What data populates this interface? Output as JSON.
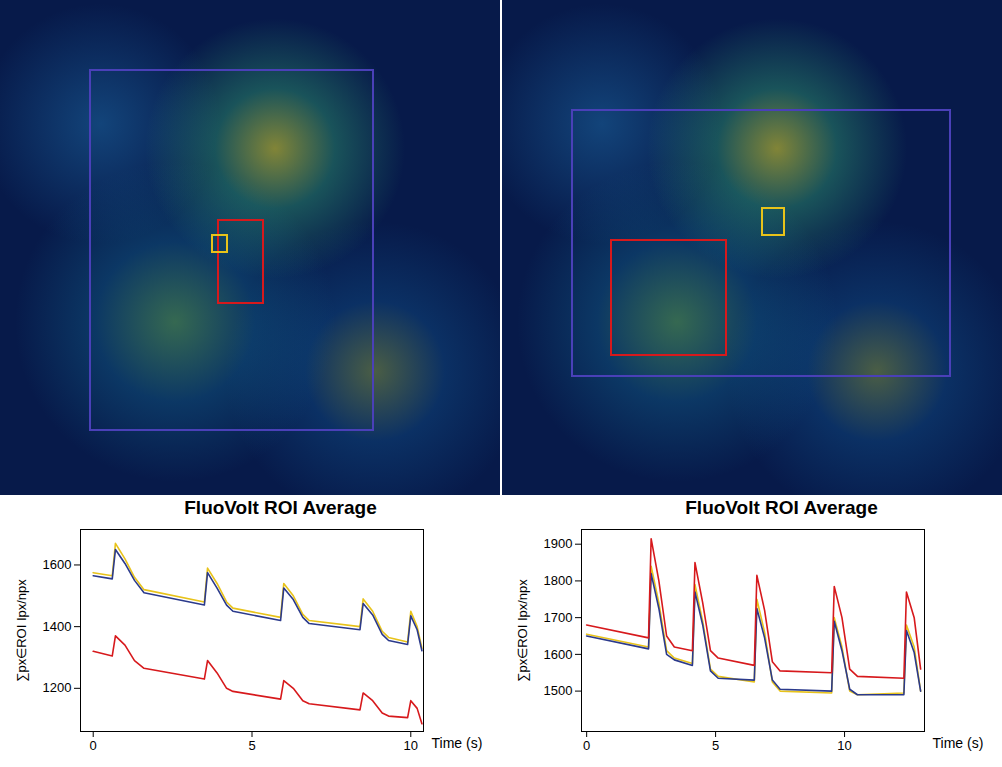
{
  "chart_data": [
    {
      "type": "line",
      "title": "FluoVolt ROI Average",
      "xlabel": "Time (s)",
      "ylabel": "∑px∈ROI Ipx/npx",
      "xlim": [
        -0.4,
        10.4
      ],
      "ylim": [
        1060,
        1715
      ],
      "xticks": [
        0,
        5,
        10
      ],
      "yticks": [
        1200,
        1400,
        1600
      ],
      "grid": false,
      "x": [
        0,
        0.6,
        0.7,
        1.0,
        1.3,
        1.6,
        3.5,
        3.6,
        3.9,
        4.2,
        4.4,
        5.9,
        6.0,
        6.3,
        6.6,
        6.8,
        8.4,
        8.5,
        8.8,
        9.1,
        9.3,
        9.9,
        10.0,
        10.2,
        10.35
      ],
      "series": [
        {
          "color": "#e8c31a",
          "values": [
            1575,
            1565,
            1670,
            1620,
            1560,
            1520,
            1480,
            1590,
            1540,
            1480,
            1460,
            1430,
            1540,
            1500,
            1440,
            1420,
            1400,
            1490,
            1450,
            1385,
            1365,
            1350,
            1450,
            1400,
            1330
          ]
        },
        {
          "color": "#2b3a8c",
          "values": [
            1565,
            1555,
            1650,
            1605,
            1550,
            1510,
            1470,
            1575,
            1525,
            1470,
            1450,
            1420,
            1525,
            1488,
            1430,
            1410,
            1390,
            1475,
            1438,
            1375,
            1355,
            1342,
            1435,
            1390,
            1322
          ]
        },
        {
          "color": "#d7191c",
          "values": [
            1320,
            1305,
            1370,
            1340,
            1290,
            1265,
            1230,
            1290,
            1250,
            1200,
            1190,
            1165,
            1225,
            1200,
            1160,
            1150,
            1130,
            1185,
            1160,
            1120,
            1110,
            1105,
            1160,
            1135,
            1085
          ]
        }
      ]
    },
    {
      "type": "line",
      "title": "FluoVolt ROI Average",
      "xlabel": "Time (s)",
      "ylabel": "∑px∈ROI Ipx/npx",
      "xlim": [
        -0.2,
        13.1
      ],
      "ylim": [
        1390,
        1940
      ],
      "xticks": [
        0,
        5,
        10
      ],
      "yticks": [
        1500,
        1600,
        1700,
        1800,
        1900
      ],
      "grid": false,
      "x": [
        0,
        2.4,
        2.5,
        2.8,
        3.1,
        3.4,
        4.1,
        4.2,
        4.5,
        4.8,
        5.1,
        6.5,
        6.6,
        6.9,
        7.2,
        7.5,
        9.5,
        9.6,
        9.9,
        10.2,
        10.5,
        12.3,
        12.4,
        12.7,
        12.95
      ],
      "series": [
        {
          "color": "#e8c31a",
          "values": [
            1655,
            1620,
            1840,
            1740,
            1610,
            1590,
            1575,
            1790,
            1690,
            1560,
            1540,
            1525,
            1750,
            1660,
            1525,
            1500,
            1495,
            1700,
            1620,
            1500,
            1490,
            1495,
            1680,
            1620,
            1500
          ]
        },
        {
          "color": "#2b3a8c",
          "values": [
            1650,
            1615,
            1820,
            1725,
            1600,
            1585,
            1570,
            1770,
            1680,
            1555,
            1535,
            1530,
            1725,
            1645,
            1530,
            1505,
            1500,
            1690,
            1610,
            1505,
            1490,
            1490,
            1665,
            1605,
            1500
          ]
        },
        {
          "color": "#d7191c",
          "values": [
            1680,
            1645,
            1915,
            1800,
            1650,
            1620,
            1610,
            1850,
            1740,
            1610,
            1590,
            1570,
            1815,
            1720,
            1580,
            1555,
            1550,
            1785,
            1700,
            1560,
            1540,
            1535,
            1770,
            1700,
            1560
          ]
        }
      ]
    }
  ]
}
